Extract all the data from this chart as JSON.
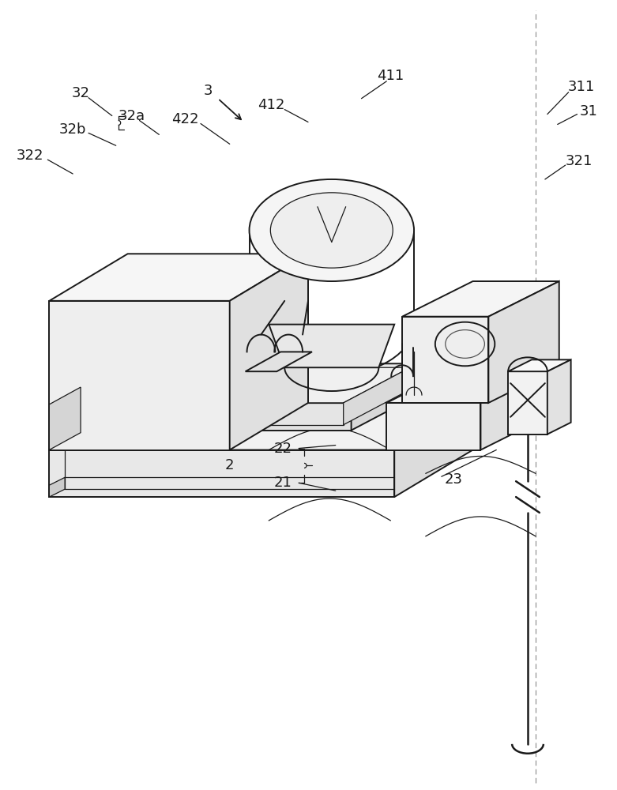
{
  "bg_color": "#ffffff",
  "line_color": "#1a1a1a",
  "label_color": "#1a1a1a",
  "font_size": 13,
  "fig_width": 7.81,
  "fig_height": 10.0
}
